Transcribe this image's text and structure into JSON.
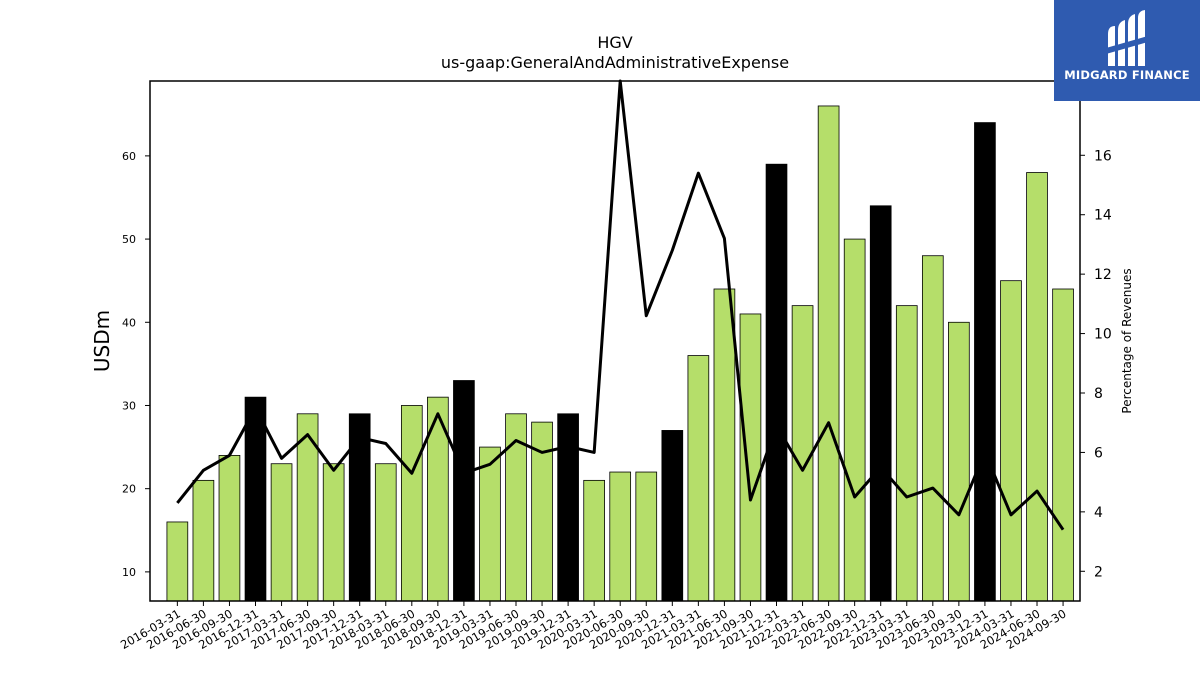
{
  "chart_data": {
    "type": "bar",
    "title": "HGV",
    "subtitle": "us-gaap:GeneralAndAdministrativeExpense",
    "ylabel": "USDm",
    "y2label": "Percentage of Revenues",
    "ylim": [
      6.5,
      69
    ],
    "y2lim": [
      1,
      18.5
    ],
    "yticks": [
      10,
      20,
      30,
      40,
      50,
      60
    ],
    "y2ticks": [
      2,
      4,
      6,
      8,
      10,
      12,
      14,
      16
    ],
    "categories": [
      "2016-03-31",
      "2016-06-30",
      "2016-09-30",
      "2016-12-31",
      "2017-03-31",
      "2017-06-30",
      "2017-09-30",
      "2017-12-31",
      "2018-03-31",
      "2018-06-30",
      "2018-09-30",
      "2018-12-31",
      "2019-03-31",
      "2019-06-30",
      "2019-09-30",
      "2019-12-31",
      "2020-03-31",
      "2020-06-30",
      "2020-09-30",
      "2020-12-31",
      "2021-03-31",
      "2021-06-30",
      "2021-09-30",
      "2021-12-31",
      "2022-03-31",
      "2022-06-30",
      "2022-09-30",
      "2022-12-31",
      "2023-03-31",
      "2023-06-30",
      "2023-09-30",
      "2023-12-31",
      "2024-03-31",
      "2024-06-30",
      "2024-09-30"
    ],
    "series": [
      {
        "values": [
          16,
          21,
          24,
          31,
          23,
          29,
          23,
          29,
          23,
          30,
          31,
          33,
          25,
          29,
          28,
          29,
          21,
          22,
          22,
          27,
          36,
          44,
          41,
          59,
          42,
          66,
          50,
          54,
          42,
          48,
          40,
          64,
          45,
          58,
          44
        ]
      },
      {
        "type": "line",
        "axis": "right",
        "values": [
          4.3,
          5.4,
          5.9,
          7.5,
          5.8,
          6.6,
          5.4,
          6.5,
          6.3,
          5.3,
          7.3,
          5.3,
          5.6,
          6.4,
          6.0,
          6.2,
          6.0,
          18.5,
          10.6,
          12.8,
          15.4,
          13.2,
          4.4,
          6.9,
          5.4,
          7.0,
          4.5,
          5.5,
          4.5,
          4.8,
          3.9,
          6.0,
          3.9,
          4.7,
          3.4
        ]
      }
    ],
    "bar_color": "#b5de6a",
    "highlight_color": "#000000",
    "highlight_categories": [
      "2016-12-31",
      "2017-12-31",
      "2018-12-31",
      "2019-12-31",
      "2020-12-31",
      "2021-12-31",
      "2022-12-31",
      "2023-12-31"
    ],
    "line_color": "#000000",
    "grid": false
  },
  "logo": {
    "text": "MIDGARD FINANCE",
    "color": "#2f5bb0"
  }
}
